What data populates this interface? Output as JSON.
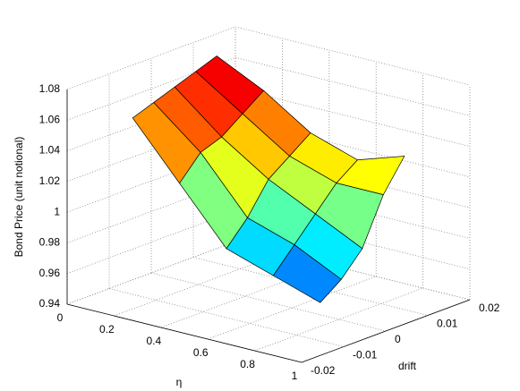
{
  "chart_data": {
    "type": "surface",
    "xlabel": "η",
    "ylabel": "drift",
    "zlabel": "Bond Price (unit notional)",
    "x": [
      0.1,
      0.3,
      0.5,
      0.7,
      0.9
    ],
    "y": [
      -0.01,
      -0.005,
      0,
      0.005,
      0.01
    ],
    "z": [
      [
        1.055,
        1.06,
        1.065,
        1.07,
        1.075
      ],
      [
        1.02,
        1.035,
        1.04,
        1.05,
        1.06
      ],
      [
        0.985,
        1.0,
        1.02,
        1.03,
        1.04
      ],
      [
        0.975,
        0.99,
        1.005,
        1.02,
        1.03
      ],
      [
        0.965,
        0.975,
        0.99,
        1.02,
        1.04
      ]
    ],
    "xlim": [
      0,
      1
    ],
    "xticks": [
      0,
      0.2,
      0.4,
      0.6,
      0.8,
      1
    ],
    "ylim": [
      -0.02,
      0.02
    ],
    "yticks": [
      -0.02,
      -0.01,
      0,
      0.01,
      0.02
    ],
    "zlim": [
      0.94,
      1.08
    ],
    "zticks": [
      0.94,
      0.96,
      0.98,
      1,
      1.02,
      1.04,
      1.06,
      1.08
    ],
    "grid": true,
    "colormap": "jet"
  }
}
